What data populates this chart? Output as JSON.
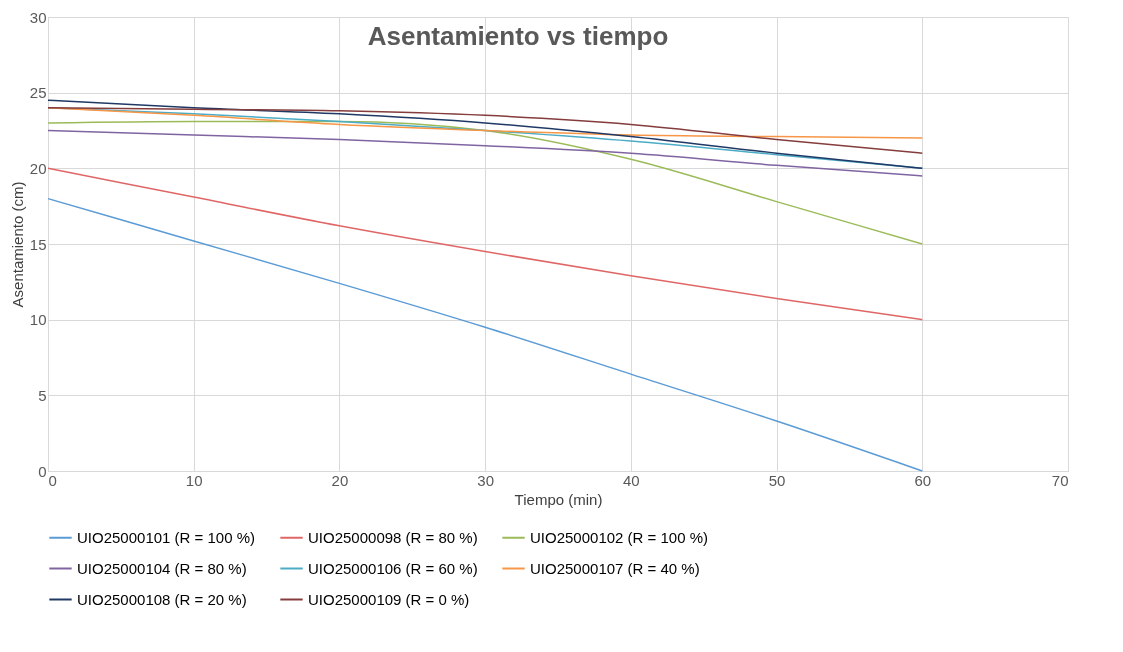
{
  "chart_data": {
    "type": "line",
    "title": "Asentamiento vs tiempo",
    "xlabel": "Tiempo (min)",
    "ylabel": "Asentamiento (cm)",
    "x": [
      0,
      10,
      20,
      30,
      40,
      50,
      60
    ],
    "series": [
      {
        "name": "UIO25000101 (R = 100 %)",
        "color": "#5b9bd5",
        "values": [
          18,
          15.2,
          12.4,
          9.5,
          6.4,
          3.3,
          0
        ]
      },
      {
        "name": "UIO25000098 (R = 80 %)",
        "color": "#e06666",
        "values": [
          20,
          18.1,
          16.2,
          14.5,
          12.9,
          11.4,
          10
        ]
      },
      {
        "name": "UIO25000102 (R = 100 %)",
        "color": "#9bbb59",
        "values": [
          23,
          23.1,
          23.1,
          22.5,
          20.6,
          17.8,
          15
        ]
      },
      {
        "name": "UIO25000104 (R = 80 %)",
        "color": "#8064a2",
        "values": [
          22.5,
          22.2,
          21.9,
          21.5,
          21,
          20.2,
          19.5
        ]
      },
      {
        "name": "UIO25000106 (R = 60 %)",
        "color": "#4bacc6",
        "values": [
          24,
          23.6,
          23.1,
          22.5,
          21.8,
          20.9,
          20
        ]
      },
      {
        "name": "UIO25000107 (R = 40 %)",
        "color": "#f79646",
        "values": [
          24,
          23.5,
          22.9,
          22.5,
          22.2,
          22.1,
          22
        ]
      },
      {
        "name": "UIO25000108 (R = 20 %)",
        "color": "#1f3864",
        "values": [
          24.5,
          24,
          23.6,
          23,
          22.1,
          21,
          20
        ]
      },
      {
        "name": "UIO25000109 (R = 0 %)",
        "color": "#843c3c",
        "values": [
          24,
          23.9,
          23.8,
          23.5,
          22.9,
          21.9,
          21
        ]
      }
    ],
    "xlim": [
      0,
      70
    ],
    "xticks": [
      0,
      10,
      20,
      30,
      40,
      50,
      60,
      70
    ],
    "ylim": [
      0,
      30
    ],
    "yticks": [
      0,
      5,
      10,
      15,
      20,
      25,
      30
    ],
    "grid": true,
    "legend": "bottom",
    "marker": "none",
    "line_style": "solid"
  }
}
